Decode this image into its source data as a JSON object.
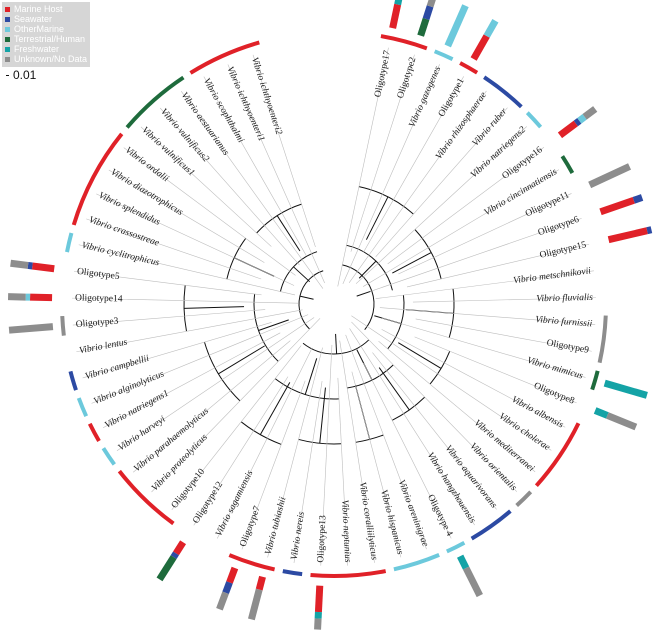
{
  "legend": {
    "items": [
      {
        "label": "Marine Host",
        "color": "#e02128"
      },
      {
        "label": "Seawater",
        "color": "#2c4aa3"
      },
      {
        "label": "OtherMarine",
        "color": "#6cc9dc"
      },
      {
        "label": "Terrestrial/Human",
        "color": "#1e6b3c"
      },
      {
        "label": "Freshwater",
        "color": "#14a3a6"
      },
      {
        "label": "Unknown/No Data",
        "color": "#8d8d8d"
      }
    ]
  },
  "scale": {
    "label": "0.01"
  },
  "tips": [
    {
      "label": "Oligotype17",
      "italic": false,
      "bar": [
        [
          "MH",
          0.55
        ],
        [
          "FW",
          0.15
        ],
        [
          "UN",
          0.3
        ]
      ]
    },
    {
      "label": "Oligotype2",
      "italic": false,
      "bar": [
        [
          "TH",
          0.4
        ],
        [
          "SW",
          0.3
        ],
        [
          "UN",
          0.3
        ]
      ]
    },
    {
      "label": "Vibrio gazogenes",
      "italic": true,
      "bar": [
        [
          "OM",
          1.0
        ]
      ]
    },
    {
      "label": "Oligotype1",
      "italic": false,
      "bar": [
        [
          "MH",
          0.6
        ],
        [
          "OM",
          0.4
        ]
      ]
    },
    {
      "label": "Vibrio rhizosphaerae",
      "italic": true,
      "bar": []
    },
    {
      "label": "Vibrio ruber",
      "italic": true,
      "bar": []
    },
    {
      "label": "Vibrio natriegens2",
      "italic": true,
      "bar": []
    },
    {
      "label": "Oligotype16",
      "italic": false,
      "bar": [
        [
          "MH",
          0.45
        ],
        [
          "SW",
          0.1
        ],
        [
          "OM",
          0.15
        ],
        [
          "UN",
          0.3
        ]
      ]
    },
    {
      "label": "Vibrio cincinnatiensis",
      "italic": true,
      "bar": []
    },
    {
      "label": "Oligotype11",
      "italic": false,
      "bar": [
        [
          "UN",
          1.0
        ]
      ]
    },
    {
      "label": "Oligotype6",
      "italic": false,
      "bar": [
        [
          "MH",
          0.8
        ],
        [
          "SW",
          0.2
        ]
      ]
    },
    {
      "label": "Oligotype15",
      "italic": false,
      "bar": [
        [
          "MH",
          0.9
        ],
        [
          "SW",
          0.1
        ]
      ]
    },
    {
      "label": "Vibrio metschnikovii",
      "italic": true,
      "bar": []
    },
    {
      "label": "Vibrio fluvialis",
      "italic": true,
      "bar": []
    },
    {
      "label": "Vibrio furnissii",
      "italic": true,
      "bar": []
    },
    {
      "label": "Oligotype9",
      "italic": false,
      "bar": []
    },
    {
      "label": "Vibrio mimicus",
      "italic": true,
      "bar": [
        [
          "FW",
          1.0
        ]
      ]
    },
    {
      "label": "Oligotype8",
      "italic": false,
      "bar": [
        [
          "FW",
          0.3
        ],
        [
          "UN",
          0.7
        ]
      ]
    },
    {
      "label": "Vibrio albensis",
      "italic": true,
      "bar": []
    },
    {
      "label": "Vibrio cholerae",
      "italic": true,
      "bar": []
    },
    {
      "label": "Vibrio mediterranei",
      "italic": true,
      "bar": []
    },
    {
      "label": "Vibrio orientalis",
      "italic": true,
      "bar": []
    },
    {
      "label": "Vibrio aquarivorans",
      "italic": true,
      "bar": []
    },
    {
      "label": "Vibrio hangzhouensis",
      "italic": true,
      "bar": []
    },
    {
      "label": "Oligotype 4",
      "italic": false,
      "bar": [
        [
          "FW",
          0.3
        ],
        [
          "UN",
          0.7
        ]
      ]
    },
    {
      "label": "Vibrio areninigrae",
      "italic": true,
      "bar": []
    },
    {
      "label": "Vibrio hispanicus",
      "italic": true,
      "bar": []
    },
    {
      "label": "Vibrio coralliilyticus",
      "italic": true,
      "bar": []
    },
    {
      "label": "Vibrio neptunius",
      "italic": true,
      "bar": []
    },
    {
      "label": "Oligotype13",
      "italic": false,
      "bar": [
        [
          "MH",
          0.6
        ],
        [
          "FW",
          0.15
        ],
        [
          "UN",
          0.25
        ]
      ]
    },
    {
      "label": "Vibrio nereis",
      "italic": true,
      "bar": []
    },
    {
      "label": "Vibrio tubiashii",
      "italic": true,
      "bar": [
        [
          "MH",
          0.3
        ],
        [
          "UN",
          0.7
        ]
      ]
    },
    {
      "label": "Oligotype7",
      "italic": false,
      "bar": [
        [
          "MH",
          0.35
        ],
        [
          "SW",
          0.25
        ],
        [
          "UN",
          0.4
        ]
      ]
    },
    {
      "label": "Vibrio sagamiensis",
      "italic": true,
      "bar": []
    },
    {
      "label": "Oligotype12",
      "italic": false,
      "bar": [
        [
          "MH",
          0.3
        ],
        [
          "SW",
          0.1
        ],
        [
          "TH",
          0.6
        ]
      ]
    },
    {
      "label": "Oligotype10",
      "italic": false,
      "bar": []
    },
    {
      "label": "Vibrio proteolyticus",
      "italic": true,
      "bar": []
    },
    {
      "label": "Vibrio parahaemolyticus",
      "italic": true,
      "bar": []
    },
    {
      "label": "Vibrio harveyi",
      "italic": true,
      "bar": []
    },
    {
      "label": "Vibrio natriegens1",
      "italic": true,
      "bar": []
    },
    {
      "label": "Vibrio alginolyticus",
      "italic": true,
      "bar": []
    },
    {
      "label": "Vibrio campbellii",
      "italic": true,
      "bar": []
    },
    {
      "label": "Vibrio lentus",
      "italic": true,
      "bar": []
    },
    {
      "label": "Oligotype3",
      "italic": false,
      "bar": [
        [
          "UN",
          1.0
        ]
      ]
    },
    {
      "label": "Oligotype14",
      "italic": false,
      "bar": [
        [
          "MH",
          0.5
        ],
        [
          "OM",
          0.1
        ],
        [
          "UN",
          0.4
        ]
      ]
    },
    {
      "label": "Oligotype5",
      "italic": false,
      "bar": [
        [
          "MH",
          0.5
        ],
        [
          "SW",
          0.1
        ],
        [
          "UN",
          0.4
        ]
      ]
    },
    {
      "label": "Vibrio cyclitrophicus",
      "italic": true,
      "bar": []
    },
    {
      "label": "Vibrio crassostreae",
      "italic": true,
      "bar": []
    },
    {
      "label": "Vibrio splendidus",
      "italic": true,
      "bar": []
    },
    {
      "label": "Vibrio diazotrophicus",
      "italic": true,
      "bar": []
    },
    {
      "label": "Vibrio ordalii",
      "italic": true,
      "bar": []
    },
    {
      "label": "Vibrio vulnificus1",
      "italic": true,
      "bar": []
    },
    {
      "label": "Vibrio vulnificus2",
      "italic": true,
      "bar": []
    },
    {
      "label": "Vibrio aestuarianus",
      "italic": true,
      "bar": []
    },
    {
      "label": "Vibrio scophthalmi",
      "italic": true,
      "bar": []
    },
    {
      "label": "Vibrio ichthyoenteri1",
      "italic": true,
      "bar": []
    },
    {
      "label": "Vibrio ichthyoenteri2",
      "italic": true,
      "bar": []
    }
  ],
  "ring": [
    {
      "from": 0,
      "to": 2,
      "cat": "MH"
    },
    {
      "from": 2,
      "to": 3,
      "cat": "OM"
    },
    {
      "from": 3,
      "to": 4,
      "cat": "MH"
    },
    {
      "from": 4,
      "to": 6,
      "cat": "SW"
    },
    {
      "from": 6,
      "to": 7,
      "cat": "OM"
    },
    {
      "from": 8,
      "to": 9,
      "cat": "TH"
    },
    {
      "from": 14,
      "to": 16,
      "cat": "UN"
    },
    {
      "from": 16,
      "to": 17,
      "cat": "TH"
    },
    {
      "from": 18,
      "to": 21,
      "cat": "MH"
    },
    {
      "from": 21,
      "to": 22,
      "cat": "UN"
    },
    {
      "from": 22,
      "to": 24,
      "cat": "SW"
    },
    {
      "from": 24,
      "to": 25,
      "cat": "OM"
    },
    {
      "from": 25,
      "to": 27,
      "cat": "OM"
    },
    {
      "from": 27,
      "to": 30,
      "cat": "MH"
    },
    {
      "from": 30,
      "to": 31,
      "cat": "SW"
    },
    {
      "from": 31,
      "to": 33,
      "cat": "MH"
    },
    {
      "from": 35,
      "to": 38,
      "cat": "MH"
    },
    {
      "from": 38,
      "to": 39,
      "cat": "OM"
    },
    {
      "from": 39,
      "to": 40,
      "cat": "MH"
    },
    {
      "from": 40,
      "to": 41,
      "cat": "OM"
    },
    {
      "from": 41,
      "to": 42,
      "cat": "SW"
    },
    {
      "from": 43,
      "to": 44,
      "cat": "UN"
    },
    {
      "from": 46,
      "to": 47,
      "cat": "OM"
    },
    {
      "from": 47,
      "to": 51,
      "cat": "MH"
    },
    {
      "from": 51,
      "to": 54,
      "cat": "TH"
    },
    {
      "from": 54,
      "to": 57,
      "cat": "MH"
    }
  ],
  "category_colors": {
    "MH": "#e02128",
    "SW": "#2c4aa3",
    "OM": "#6cc9dc",
    "TH": "#1e6b3c",
    "FW": "#14a3a6",
    "UN": "#8d8d8d"
  }
}
